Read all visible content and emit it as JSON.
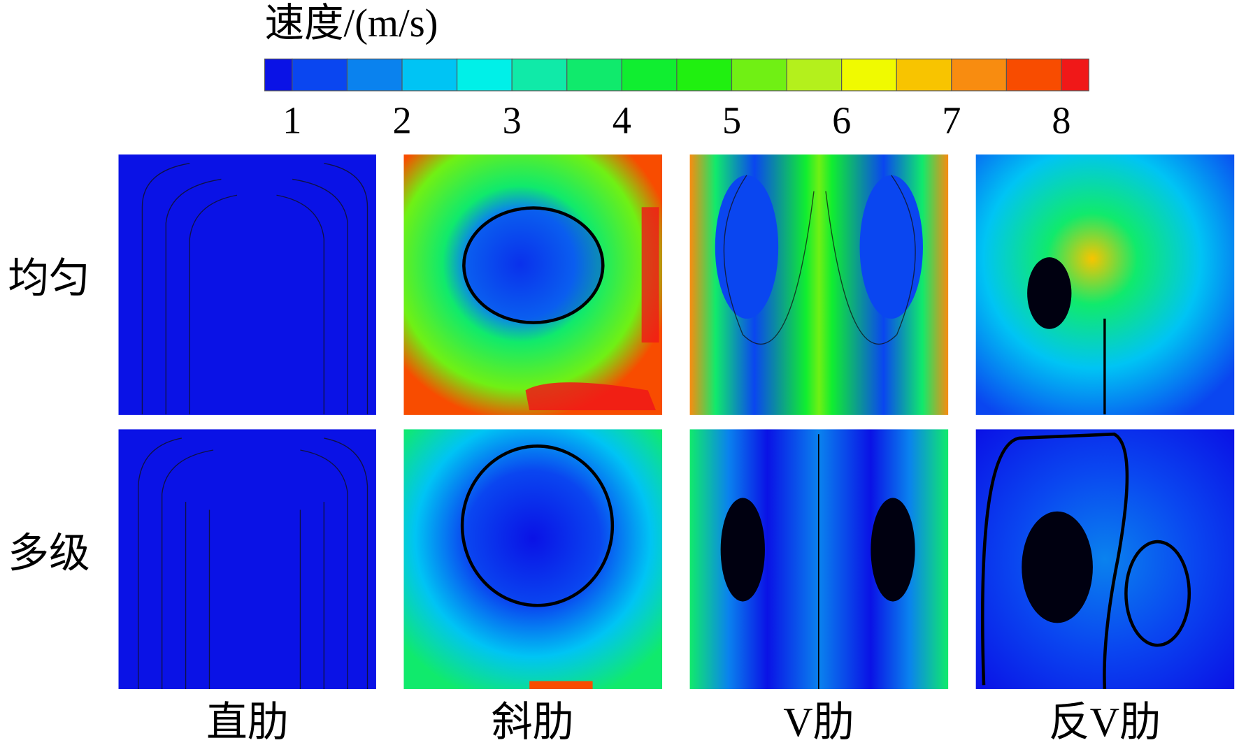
{
  "colorbar": {
    "title": "速度/(m/s)",
    "lim": [
      0.75,
      8.25
    ],
    "boundaries": [
      0.75,
      1,
      1.5,
      2,
      2.5,
      3,
      3.5,
      4,
      4.5,
      5,
      5.5,
      6,
      6.5,
      7,
      7.5,
      8,
      8.25
    ],
    "colors": [
      "#0a12e6",
      "#0a46f0",
      "#0a82ee",
      "#00c4f4",
      "#00f0e8",
      "#10eaa8",
      "#10ea6c",
      "#10ee30",
      "#20f010",
      "#70f014",
      "#b4f01c",
      "#f0fa00",
      "#f8c400",
      "#f88c10",
      "#f84c00",
      "#f01818"
    ],
    "ticks": [
      1,
      2,
      3,
      4,
      5,
      6,
      7,
      8
    ]
  },
  "rows": [
    "均匀",
    "多级"
  ],
  "columns": [
    "直肋",
    "斜肋",
    "V肋",
    "反V肋"
  ]
}
